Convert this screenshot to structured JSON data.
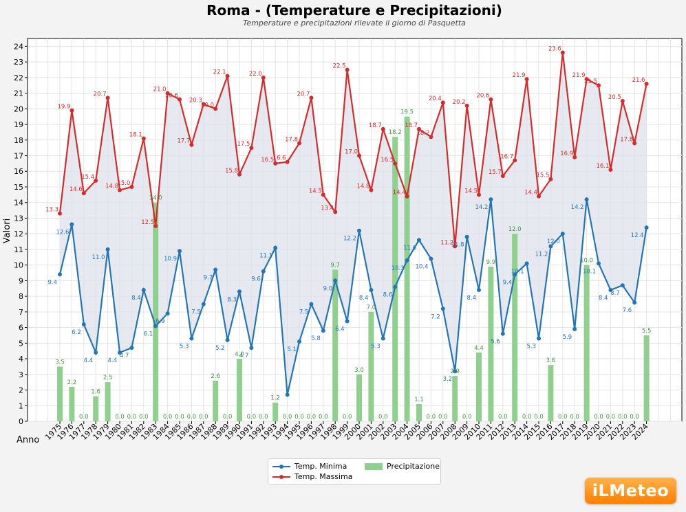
{
  "chart_data": {
    "type": "line",
    "title": "Roma -  (Temperature e Precipitazioni)",
    "subtitle": "Temperature e precipitazioni rilevate il giorno di Pasquetta",
    "xlabel": "Anno",
    "ylabel": "Valori",
    "ylim": [
      0,
      24.5
    ],
    "grid": true,
    "legend_position": "bottom-center",
    "colors": {
      "min": "#2475b5",
      "max": "#d62b2b",
      "precip": "#8fd08f",
      "fill": "#dde2ea",
      "min_label": "#2475b5",
      "max_label": "#d62b2b",
      "precip_label": "#3a9a3a"
    },
    "x": [
      "1975",
      "1976",
      "1977",
      "1978",
      "1979",
      "1980",
      "1981",
      "1982",
      "1983",
      "1984",
      "1985",
      "1986",
      "1987",
      "1988",
      "1989",
      "1990",
      "1991",
      "1992",
      "1993",
      "1994",
      "1995",
      "1996",
      "1997",
      "1998",
      "1999",
      "2000",
      "2001",
      "2002",
      "2003",
      "2004",
      "2005",
      "2006",
      "2007",
      "2008",
      "2009",
      "2010",
      "2011",
      "2012",
      "2013",
      "2014",
      "2015",
      "2016",
      "2017",
      "2018",
      "2019",
      "2020",
      "2021",
      "2022",
      "2023",
      "2024"
    ],
    "series": [
      {
        "name": "Temp. Minima",
        "type": "line",
        "values": [
          9.4,
          12.6,
          6.2,
          4.4,
          11.0,
          4.4,
          4.7,
          8.4,
          6.1,
          6.9,
          10.9,
          5.3,
          7.5,
          9.7,
          5.2,
          8.3,
          4.7,
          9.6,
          11.1,
          1.7,
          5.1,
          7.5,
          5.8,
          9.0,
          6.4,
          12.2,
          8.4,
          5.3,
          8.6,
          10.3,
          11.6,
          10.4,
          7.2,
          3.2,
          11.8,
          8.4,
          14.2,
          5.6,
          9.4,
          10.1,
          5.3,
          11.2,
          12.0,
          5.9,
          14.2,
          10.1,
          8.4,
          8.7,
          7.6,
          12.4
        ],
        "labels": [
          "9.4",
          "12.6",
          "6.2",
          "4.4",
          "11.0",
          "4.4",
          "4.7",
          "8.4",
          "6.1",
          "6.9",
          "10.9",
          "5.3",
          "7.5",
          "9.7",
          "5.2",
          "8.3",
          "4.7",
          "9.6",
          "11.1",
          "",
          "5.1",
          "7.5",
          "5.8",
          "9.0",
          "6.4",
          "12.2",
          "8.4",
          "5.3",
          "8.6",
          "10.3",
          "11.6",
          "10.4",
          "7.2",
          "3.2",
          "11.8",
          "8.4",
          "14.2",
          "5.6",
          "9.4",
          "10.1",
          "5.3",
          "11.2",
          "12.0",
          "5.9",
          "14.2",
          "10.1",
          "8.4",
          "8.7",
          "7.6",
          "12.4"
        ]
      },
      {
        "name": "Temp. Massima",
        "type": "line",
        "values": [
          13.3,
          19.9,
          14.6,
          15.4,
          20.7,
          14.8,
          15.0,
          18.1,
          12.5,
          21.0,
          20.6,
          17.7,
          20.3,
          20.0,
          22.1,
          15.8,
          17.5,
          22.0,
          16.5,
          16.6,
          17.8,
          20.7,
          14.5,
          13.4,
          22.5,
          17.0,
          14.8,
          18.7,
          16.5,
          14.4,
          18.7,
          18.2,
          20.4,
          11.2,
          20.2,
          14.5,
          20.6,
          15.7,
          16.7,
          21.9,
          14.4,
          15.5,
          23.6,
          16.9,
          21.9,
          21.5,
          16.1,
          20.5,
          17.8,
          21.6
        ],
        "labels": [
          "13.3",
          "19.9",
          "14.6",
          "15.4",
          "20.7",
          "14.8",
          "15.0",
          "18.1",
          "12.5",
          "21.0",
          "20.6",
          "17.7",
          "20.3",
          "20.0",
          "22.1",
          "15.8",
          "17.5",
          "22.0",
          "16.5",
          "16.6",
          "17.8",
          "20.7",
          "14.5",
          "13.4",
          "22.5",
          "17.0",
          "14.8",
          "18.7",
          "16.5",
          "14.4",
          "18.7",
          "18.2",
          "20.4",
          "11.2",
          "20.2",
          "14.5",
          "20.6",
          "15.7",
          "16.7",
          "21.9",
          "14.4",
          "15.5",
          "23.6",
          "16.9",
          "21.9",
          "21.5",
          "16.1",
          "20.5",
          "17.8",
          "21.6"
        ]
      },
      {
        "name": "Precipitazione",
        "type": "bar",
        "values": [
          3.5,
          2.2,
          0.0,
          1.6,
          2.5,
          0.0,
          0.0,
          0.0,
          14.0,
          0.0,
          0.0,
          0.0,
          0.0,
          2.6,
          0.0,
          4.0,
          0.0,
          0.0,
          1.2,
          0.0,
          0.0,
          0.0,
          0.0,
          9.7,
          0.0,
          3.0,
          7.0,
          0.0,
          18.2,
          19.5,
          1.1,
          0.0,
          0.0,
          2.9,
          0.0,
          4.4,
          9.9,
          0.0,
          12.0,
          0.0,
          0.0,
          3.6,
          0.0,
          0.0,
          10.0,
          0.0,
          0.0,
          0.0,
          0.0,
          5.5
        ],
        "labels": [
          "3.5",
          "2.2",
          "0.0",
          "1.6",
          "2.5",
          "0.0",
          "0.0",
          "0.0",
          "14.0",
          "0.0",
          "0.0",
          "0.0",
          "0.0",
          "2.6",
          "0.0",
          "4.0",
          "0.0",
          "0.0",
          "1.2",
          "0.0",
          "0.0",
          "0.0",
          "0.0",
          "9.7",
          "0.0",
          "3.0",
          "7.0",
          "0.0",
          "18.2",
          "19.5",
          "1.1",
          "0.0",
          "0.0",
          "2.9",
          "0.0",
          "4.4",
          "9.9",
          "0.0",
          "12.0",
          "0.0",
          "0.0",
          "3.6",
          "0.0",
          "0.0",
          "10.0",
          "0.0",
          "0.0",
          "0.0",
          "0.0",
          "5.5"
        ]
      }
    ],
    "yticks": [
      "0",
      "1",
      "2",
      "3",
      "4",
      "5",
      "6",
      "7",
      "8",
      "9",
      "10",
      "11",
      "12",
      "13",
      "14",
      "15",
      "16",
      "17",
      "18",
      "19",
      "20",
      "21",
      "22",
      "23",
      "24"
    ]
  },
  "legend": {
    "min_label": "Temp. Minima",
    "max_label": "Temp. Massima",
    "precip_label": "Precipitazione"
  },
  "logo": {
    "text": "iLMeteo"
  }
}
